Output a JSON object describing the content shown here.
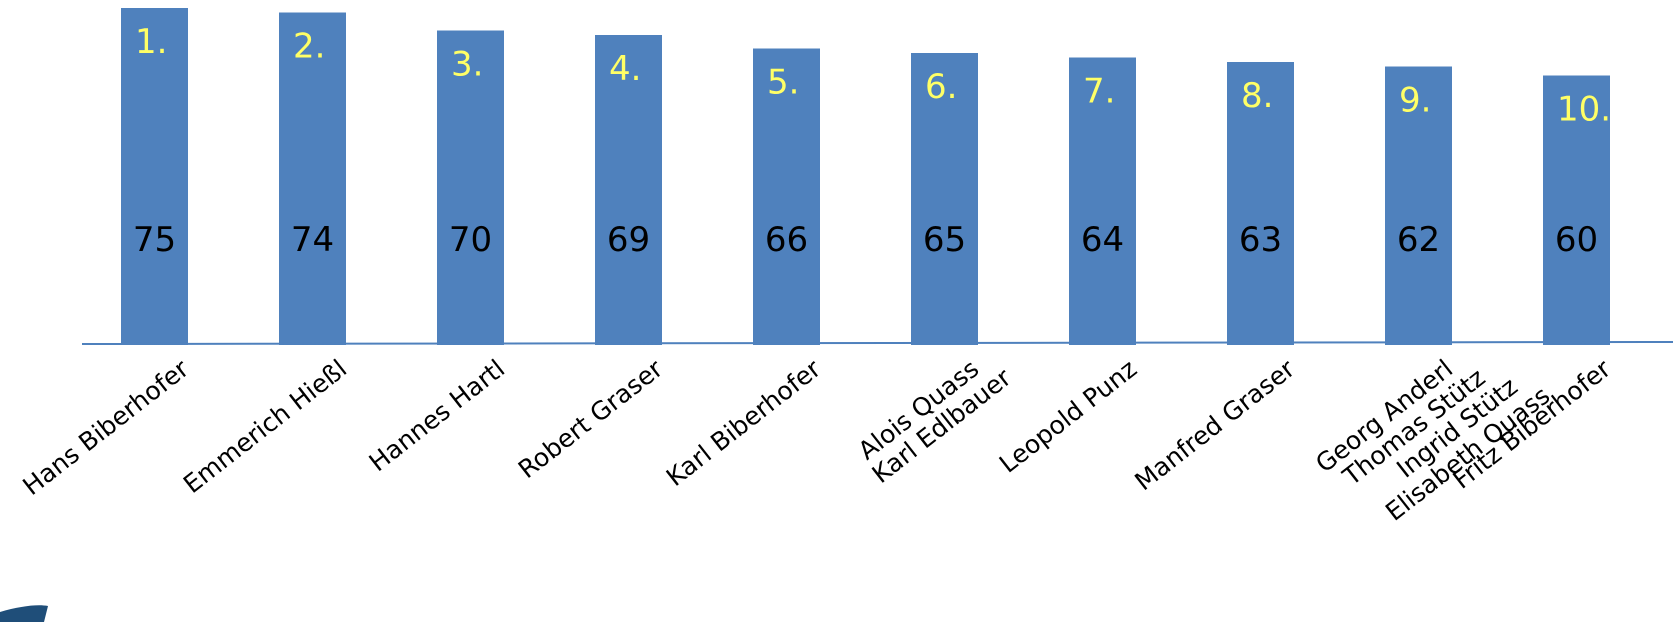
{
  "chart_data": {
    "type": "bar",
    "categories": [
      [
        "Hans Biberhofer"
      ],
      [
        "Emmerich Hießl"
      ],
      [
        "Hannes Hartl"
      ],
      [
        "Robert Graser"
      ],
      [
        "Karl Biberhofer"
      ],
      [
        "Alois Quass",
        "Karl Edlbauer"
      ],
      [
        "Leopold Punz"
      ],
      [
        "Manfred Graser"
      ],
      [
        "Georg Anderl",
        "Thomas Stütz",
        "Ingrid Stütz",
        "Elisabeth Quass"
      ],
      [
        "Fritz Biberhofer"
      ]
    ],
    "ranks": [
      "1.",
      "2.",
      "3.",
      "4.",
      "5.",
      "6.",
      "7.",
      "8.",
      "9.",
      "10."
    ],
    "values": [
      75,
      74,
      70,
      69,
      66,
      65,
      64,
      63,
      62,
      60
    ],
    "colors": {
      "bar": "#4f81bd",
      "rank_label": "#ffff66",
      "value_label": "#000000",
      "axis": "#4f81bd",
      "corner": "#1f4e79"
    },
    "title": "",
    "xlabel": "",
    "ylabel": "",
    "grid": false,
    "legend": "none"
  }
}
